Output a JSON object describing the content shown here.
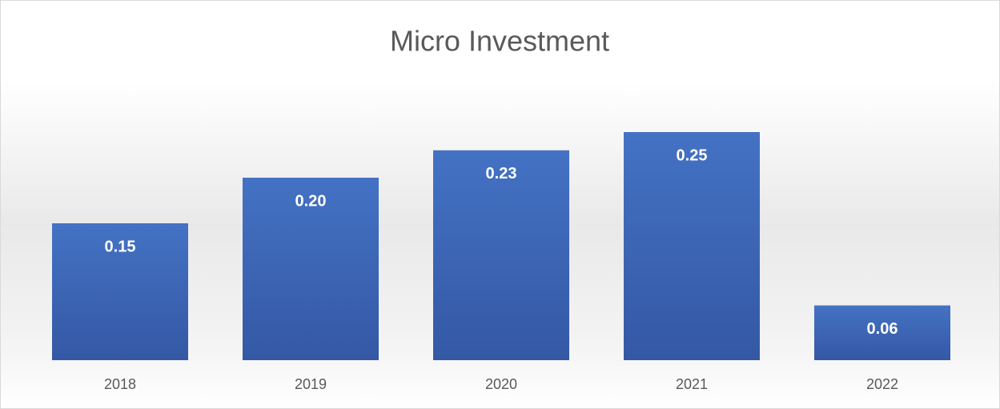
{
  "chart_data": {
    "type": "bar",
    "title": "Micro Investment",
    "categories": [
      "2018",
      "2019",
      "2020",
      "2021",
      "2022"
    ],
    "values": [
      0.15,
      0.2,
      0.23,
      0.25,
      0.06
    ],
    "value_labels": [
      "0.15",
      "0.20",
      "0.23",
      "0.25",
      "0.06"
    ],
    "color": "#4472c4"
  }
}
